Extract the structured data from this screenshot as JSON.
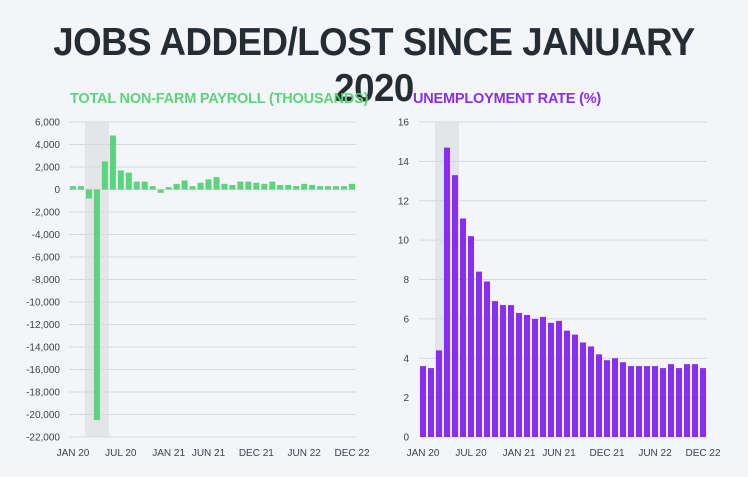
{
  "title": "JOBS ADDED/LOST SINCE JANUARY 2020",
  "colors": {
    "payroll": "#5dd37d",
    "unemployment": "#8a2ee8",
    "title_text": "#252c33",
    "highlight": "#e3e6e9",
    "grid": "#d5d9de"
  },
  "chart_data": [
    {
      "type": "bar",
      "title": "TOTAL NON-FARM PAYROLL (THOUSANDS)",
      "ylim": [
        -22000,
        6000
      ],
      "y_ticks": [
        "6,000",
        "4,000",
        "2,000",
        "0",
        "-2,000",
        "-4,000",
        "-6,000",
        "-8,000",
        "-10,000",
        "-12,000",
        "-14,000",
        "-16,000",
        "-18,000",
        "-20,000",
        "-22,000"
      ],
      "x_tick_labels": [
        "JAN 20",
        "JUL 20",
        "JAN 21",
        "JUN 21",
        "DEC 21",
        "JUN 22",
        "DEC 22"
      ],
      "highlight": "MAR 20 - MAY 20",
      "categories": [
        "JAN 20",
        "FEB 20",
        "MAR 20",
        "APR 20",
        "MAY 20",
        "JUN 20",
        "JUL 20",
        "AUG 20",
        "SEP 20",
        "OCT 20",
        "NOV 20",
        "DEC 20",
        "JAN 21",
        "FEB 21",
        "MAR 21",
        "APR 21",
        "MAY 21",
        "JUN 21",
        "JUL 21",
        "AUG 21",
        "SEP 21",
        "OCT 21",
        "NOV 21",
        "DEC 21",
        "JAN 22",
        "FEB 22",
        "MAR 22",
        "APR 22",
        "MAY 22",
        "JUN 22",
        "JUL 22",
        "AUG 22",
        "SEP 22",
        "OCT 22",
        "NOV 22",
        "DEC 22"
      ],
      "values": [
        300,
        300,
        -800,
        -20500,
        2500,
        4800,
        1700,
        1500,
        700,
        700,
        300,
        -300,
        200,
        500,
        800,
        300,
        600,
        900,
        1100,
        500,
        400,
        700,
        700,
        600,
        500,
        700,
        400,
        400,
        300,
        500,
        400,
        300,
        300,
        300,
        300,
        500
      ]
    },
    {
      "type": "bar",
      "title": "UNEMPLOYMENT RATE (%)",
      "ylim": [
        0,
        16
      ],
      "y_ticks": [
        "16",
        "14",
        "12",
        "10",
        "8",
        "6",
        "4",
        "2",
        "0"
      ],
      "x_tick_labels": [
        "JAN 20",
        "JUL 20",
        "JAN 21",
        "JUN 21",
        "DEC 21",
        "JUN 22",
        "DEC 22"
      ],
      "highlight": "MAR 20 - MAY 20",
      "categories": [
        "JAN 20",
        "FEB 20",
        "MAR 20",
        "APR 20",
        "MAY 20",
        "JUN 20",
        "JUL 20",
        "AUG 20",
        "SEP 20",
        "OCT 20",
        "NOV 20",
        "DEC 20",
        "JAN 21",
        "FEB 21",
        "MAR 21",
        "APR 21",
        "MAY 21",
        "JUN 21",
        "JUL 21",
        "AUG 21",
        "SEP 21",
        "OCT 21",
        "NOV 21",
        "DEC 21",
        "JAN 22",
        "FEB 22",
        "MAR 22",
        "APR 22",
        "MAY 22",
        "JUN 22",
        "JUL 22",
        "AUG 22",
        "SEP 22",
        "OCT 22",
        "NOV 22",
        "DEC 22"
      ],
      "values": [
        3.6,
        3.5,
        4.4,
        14.7,
        13.3,
        11.1,
        10.2,
        8.4,
        7.9,
        6.9,
        6.7,
        6.7,
        6.3,
        6.2,
        6.0,
        6.1,
        5.8,
        5.9,
        5.4,
        5.2,
        4.8,
        4.6,
        4.2,
        3.9,
        4.0,
        3.8,
        3.6,
        3.6,
        3.6,
        3.6,
        3.5,
        3.7,
        3.5,
        3.7,
        3.7,
        3.5
      ]
    }
  ]
}
